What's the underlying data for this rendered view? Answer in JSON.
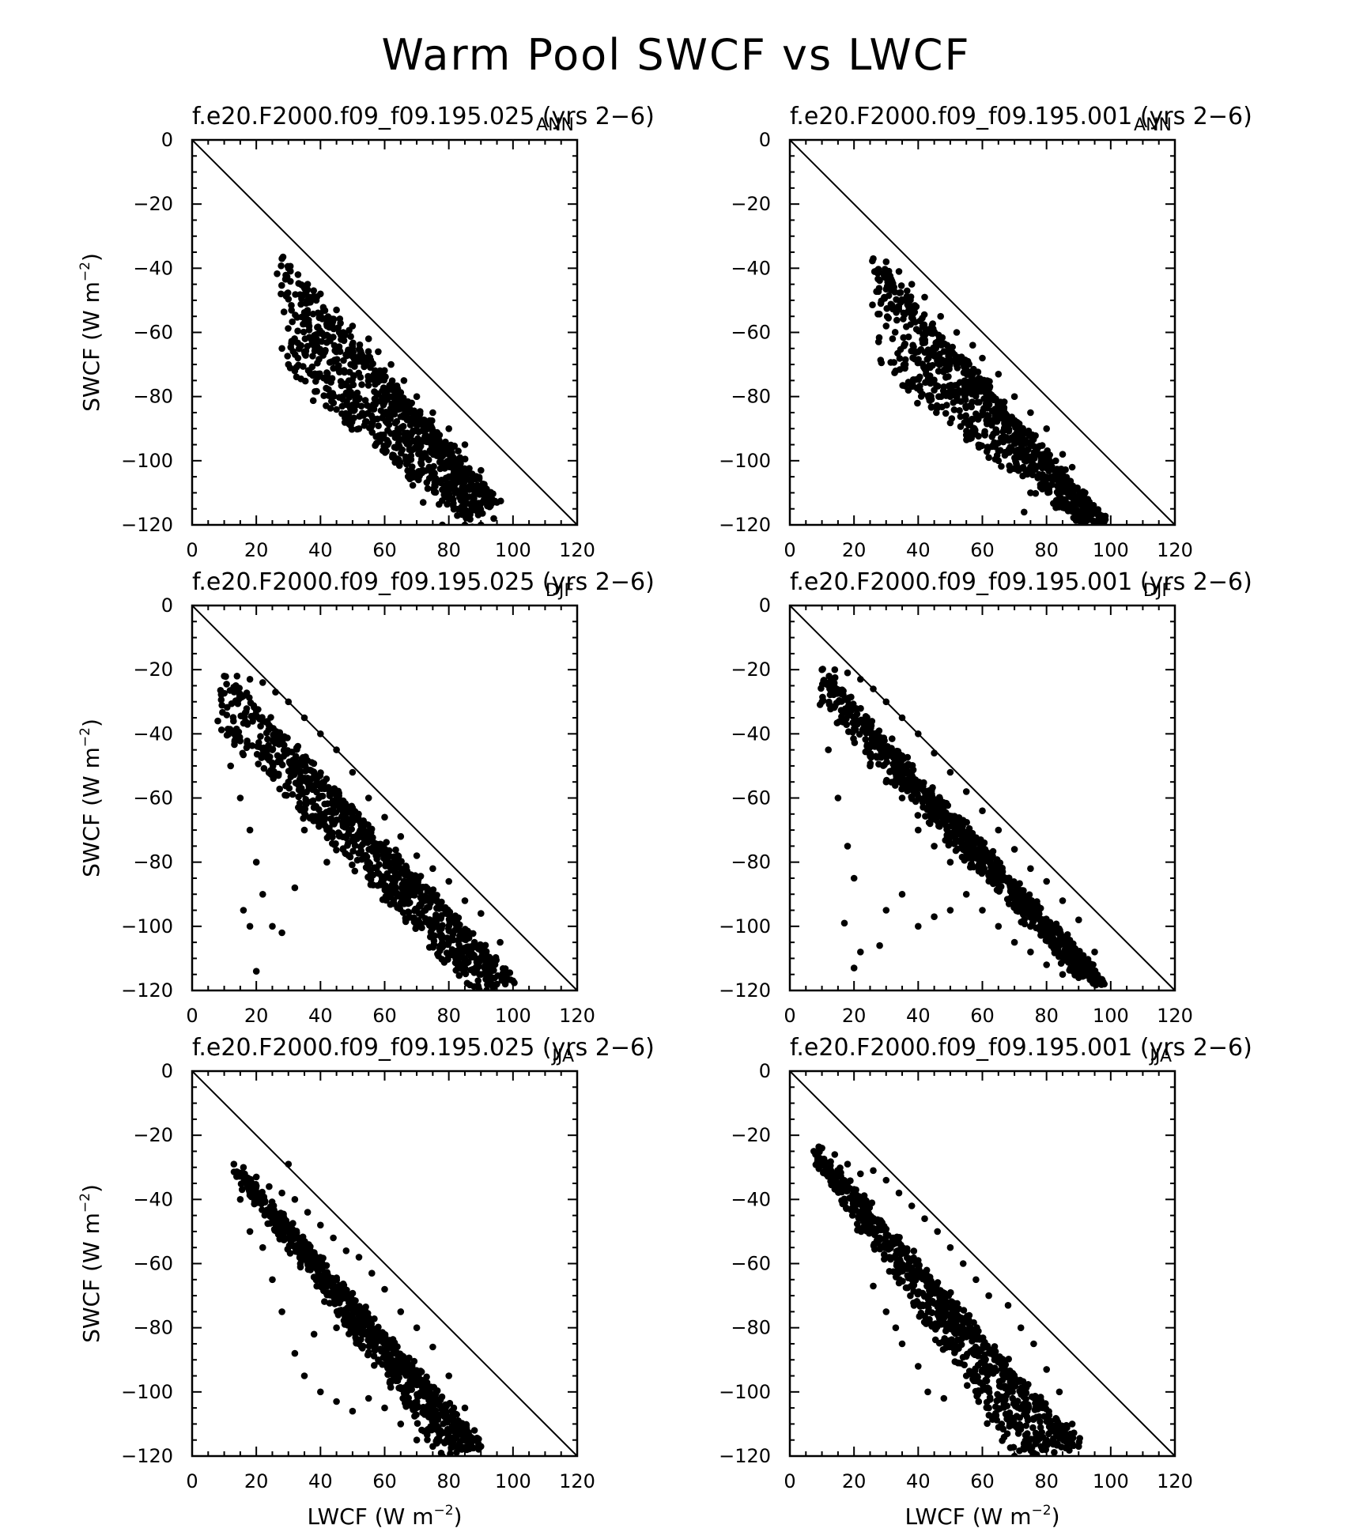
{
  "figure": {
    "title": "Warm Pool SWCF vs LWCF",
    "x_axis_label_main": "LWCF (W m",
    "y_axis_label_main": "SWCF (W m",
    "axis_unit_exponent": "−2",
    "axis_label_close": ")"
  },
  "chart_data": [
    {
      "type": "scatter",
      "title": "f.e20.F2000.f09_f09.195.025 (yrs 2−6)",
      "season": "ANN",
      "xlabel": "",
      "ylabel": "SWCF (W m−2)",
      "xlim": [
        0,
        120
      ],
      "ylim": [
        -120,
        0
      ],
      "x_ticks": [
        "0",
        "20",
        "40",
        "60",
        "80",
        "100",
        "120"
      ],
      "y_ticks": [
        "0",
        "−20",
        "−40",
        "−60",
        "−80",
        "−100",
        "−120"
      ],
      "reference_line": "y = −x",
      "cloud": {
        "upper_start": [
          27,
          -37
        ],
        "upper_end": [
          95,
          -113
        ],
        "lower_start": [
          28,
          -72
        ],
        "lower_end": [
          86,
          -120
        ]
      },
      "points": [
        [
          28,
          -37
        ],
        [
          30,
          -40
        ],
        [
          33,
          -42
        ],
        [
          36,
          -45
        ],
        [
          40,
          -48
        ],
        [
          45,
          -53
        ],
        [
          50,
          -58
        ],
        [
          55,
          -62
        ],
        [
          58,
          -66
        ],
        [
          62,
          -70
        ],
        [
          66,
          -75
        ],
        [
          70,
          -80
        ],
        [
          75,
          -85
        ],
        [
          80,
          -90
        ],
        [
          85,
          -95
        ],
        [
          90,
          -103
        ],
        [
          95,
          -113
        ],
        [
          28,
          -65
        ],
        [
          30,
          -70
        ],
        [
          33,
          -68
        ],
        [
          35,
          -66
        ],
        [
          42,
          -75
        ],
        [
          47,
          -80
        ],
        [
          52,
          -90
        ],
        [
          60,
          -96
        ],
        [
          64,
          -92
        ],
        [
          72,
          -103
        ],
        [
          72,
          -113
        ],
        [
          80,
          -105
        ],
        [
          82,
          -110
        ],
        [
          85,
          -120
        ],
        [
          78,
          -120
        ],
        [
          94,
          -118
        ],
        [
          90,
          -120
        ],
        [
          32,
          -72
        ]
      ]
    },
    {
      "type": "scatter",
      "title": "f.e20.F2000.f09_f09.195.001 (yrs 2−6)",
      "season": "ANN",
      "xlabel": "",
      "ylabel": "",
      "xlim": [
        0,
        120
      ],
      "ylim": [
        -120,
        0
      ],
      "x_ticks": [
        "0",
        "20",
        "40",
        "60",
        "80",
        "100",
        "120"
      ],
      "y_ticks": [
        "0",
        "−20",
        "−40",
        "−60",
        "−80",
        "−100",
        "−120"
      ],
      "reference_line": "y = −x",
      "cloud": {
        "upper_start": [
          26,
          -37
        ],
        "upper_end": [
          98,
          -119
        ],
        "lower_start": [
          28,
          -72
        ],
        "lower_end": [
          92,
          -120
        ]
      },
      "points": [
        [
          26,
          -37
        ],
        [
          30,
          -38
        ],
        [
          34,
          -41
        ],
        [
          38,
          -45
        ],
        [
          42,
          -49
        ],
        [
          47,
          -55
        ],
        [
          52,
          -60
        ],
        [
          57,
          -64
        ],
        [
          60,
          -68
        ],
        [
          65,
          -73
        ],
        [
          70,
          -80
        ],
        [
          75,
          -85
        ],
        [
          80,
          -90
        ],
        [
          85,
          -98
        ],
        [
          88,
          -102
        ],
        [
          92,
          -110
        ],
        [
          98,
          -119
        ],
        [
          30,
          -58
        ],
        [
          32,
          -62
        ],
        [
          33,
          -72
        ],
        [
          36,
          -70
        ],
        [
          40,
          -66
        ],
        [
          45,
          -78
        ],
        [
          50,
          -80
        ],
        [
          55,
          -92
        ],
        [
          62,
          -99
        ],
        [
          65,
          -100
        ],
        [
          73,
          -116
        ],
        [
          75,
          -110
        ],
        [
          80,
          -108
        ],
        [
          86,
          -113
        ],
        [
          92,
          -120
        ],
        [
          95,
          -120
        ]
      ]
    },
    {
      "type": "scatter",
      "title": "f.e20.F2000.f09_f09.195.025 (yrs 2−6)",
      "season": "DJF",
      "xlabel": "",
      "ylabel": "SWCF (W m−2)",
      "xlim": [
        0,
        120
      ],
      "ylim": [
        -120,
        0
      ],
      "x_ticks": [
        "0",
        "20",
        "40",
        "60",
        "80",
        "100",
        "120"
      ],
      "y_ticks": [
        "0",
        "−20",
        "−40",
        "−60",
        "−80",
        "−100",
        "−120"
      ],
      "reference_line": "y = −x",
      "cloud": {
        "upper_start": [
          10,
          -22
        ],
        "upper_end": [
          100,
          -117
        ],
        "lower_start": [
          8,
          -38
        ],
        "lower_end": [
          88,
          -120
        ]
      },
      "points": [
        [
          8,
          -36
        ],
        [
          10,
          -22
        ],
        [
          14,
          -22
        ],
        [
          18,
          -23
        ],
        [
          22,
          -24
        ],
        [
          26,
          -27
        ],
        [
          30,
          -30
        ],
        [
          35,
          -35
        ],
        [
          40,
          -40
        ],
        [
          45,
          -45
        ],
        [
          50,
          -52
        ],
        [
          55,
          -60
        ],
        [
          60,
          -66
        ],
        [
          65,
          -72
        ],
        [
          70,
          -78
        ],
        [
          75,
          -82
        ],
        [
          80,
          -86
        ],
        [
          85,
          -92
        ],
        [
          90,
          -96
        ],
        [
          96,
          -105
        ],
        [
          100,
          -117
        ],
        [
          12,
          -50
        ],
        [
          15,
          -60
        ],
        [
          18,
          -70
        ],
        [
          20,
          -80
        ],
        [
          22,
          -90
        ],
        [
          18,
          -100
        ],
        [
          20,
          -114
        ],
        [
          16,
          -95
        ],
        [
          25,
          -100
        ],
        [
          28,
          -102
        ],
        [
          32,
          -88
        ],
        [
          42,
          -80
        ],
        [
          55,
          -80
        ],
        [
          60,
          -85
        ],
        [
          65,
          -90
        ],
        [
          70,
          -95
        ],
        [
          75,
          -100
        ],
        [
          80,
          -105
        ],
        [
          85,
          -110
        ],
        [
          90,
          -115
        ],
        [
          95,
          -118
        ],
        [
          35,
          -70
        ],
        [
          40,
          -65
        ],
        [
          45,
          -60
        ],
        [
          30,
          -55
        ],
        [
          25,
          -45
        ]
      ]
    },
    {
      "type": "scatter",
      "title": "f.e20.F2000.f09_f09.195.001 (yrs 2−6)",
      "season": "DJF",
      "xlabel": "",
      "ylabel": "",
      "xlim": [
        0,
        120
      ],
      "ylim": [
        -120,
        0
      ],
      "x_ticks": [
        "0",
        "20",
        "40",
        "60",
        "80",
        "100",
        "120"
      ],
      "y_ticks": [
        "0",
        "−20",
        "−40",
        "−60",
        "−80",
        "−100",
        "−120"
      ],
      "reference_line": "y = −x",
      "cloud": {
        "upper_start": [
          10,
          -20
        ],
        "upper_end": [
          98,
          -118
        ],
        "lower_start": [
          9,
          -30
        ],
        "lower_end": [
          90,
          -116
        ]
      },
      "points": [
        [
          10,
          -20
        ],
        [
          14,
          -20
        ],
        [
          18,
          -21
        ],
        [
          22,
          -23
        ],
        [
          26,
          -26
        ],
        [
          30,
          -30
        ],
        [
          35,
          -35
        ],
        [
          40,
          -40
        ],
        [
          45,
          -46
        ],
        [
          50,
          -52
        ],
        [
          55,
          -58
        ],
        [
          60,
          -64
        ],
        [
          65,
          -70
        ],
        [
          70,
          -76
        ],
        [
          75,
          -82
        ],
        [
          80,
          -86
        ],
        [
          85,
          -92
        ],
        [
          90,
          -98
        ],
        [
          95,
          -108
        ],
        [
          98,
          -118
        ],
        [
          10,
          -30
        ],
        [
          12,
          -45
        ],
        [
          15,
          -60
        ],
        [
          18,
          -75
        ],
        [
          20,
          -85
        ],
        [
          17,
          -99
        ],
        [
          20,
          -113
        ],
        [
          22,
          -108
        ],
        [
          28,
          -106
        ],
        [
          30,
          -95
        ],
        [
          35,
          -90
        ],
        [
          40,
          -100
        ],
        [
          45,
          -97
        ],
        [
          50,
          -95
        ],
        [
          55,
          -90
        ],
        [
          60,
          -95
        ],
        [
          65,
          -100
        ],
        [
          70,
          -105
        ],
        [
          75,
          -108
        ],
        [
          80,
          -112
        ],
        [
          85,
          -115
        ],
        [
          90,
          -116
        ],
        [
          25,
          -50
        ],
        [
          30,
          -55
        ],
        [
          35,
          -60
        ],
        [
          40,
          -70
        ],
        [
          45,
          -75
        ],
        [
          50,
          -80
        ]
      ]
    },
    {
      "type": "scatter",
      "title": "f.e20.F2000.f09_f09.195.025 (yrs 2−6)",
      "season": "JJA",
      "xlabel": "LWCF (W m−2)",
      "ylabel": "SWCF (W m−2)",
      "xlim": [
        0,
        120
      ],
      "ylim": [
        -120,
        0
      ],
      "x_ticks": [
        "0",
        "20",
        "40",
        "60",
        "80",
        "100",
        "120"
      ],
      "y_ticks": [
        "0",
        "−20",
        "−40",
        "−60",
        "−80",
        "−100",
        "−120"
      ],
      "reference_line": "y = −x",
      "cloud": {
        "upper_start": [
          13,
          -29
        ],
        "upper_end": [
          90,
          -117
        ],
        "lower_start": [
          13,
          -32
        ],
        "lower_end": [
          78,
          -120
        ]
      },
      "points": [
        [
          13,
          -29
        ],
        [
          16,
          -30
        ],
        [
          20,
          -33
        ],
        [
          24,
          -36
        ],
        [
          28,
          -38
        ],
        [
          32,
          -40
        ],
        [
          36,
          -44
        ],
        [
          40,
          -48
        ],
        [
          44,
          -52
        ],
        [
          48,
          -56
        ],
        [
          52,
          -58
        ],
        [
          56,
          -63
        ],
        [
          60,
          -68
        ],
        [
          65,
          -75
        ],
        [
          70,
          -80
        ],
        [
          75,
          -86
        ],
        [
          80,
          -95
        ],
        [
          85,
          -105
        ],
        [
          88,
          -112
        ],
        [
          90,
          -117
        ],
        [
          15,
          -40
        ],
        [
          18,
          -50
        ],
        [
          22,
          -55
        ],
        [
          25,
          -65
        ],
        [
          28,
          -75
        ],
        [
          32,
          -88
        ],
        [
          35,
          -95
        ],
        [
          40,
          -100
        ],
        [
          45,
          -103
        ],
        [
          50,
          -106
        ],
        [
          55,
          -102
        ],
        [
          60,
          -105
        ],
        [
          65,
          -110
        ],
        [
          70,
          -115
        ],
        [
          75,
          -117
        ],
        [
          78,
          -120
        ],
        [
          30,
          -29
        ],
        [
          38,
          -82
        ],
        [
          45,
          -80
        ],
        [
          52,
          -85
        ],
        [
          58,
          -90
        ]
      ]
    },
    {
      "type": "scatter",
      "title": "f.e20.F2000.f09_f09.195.001 (yrs 2−6)",
      "season": "JJA",
      "xlabel": "LWCF (W m−2)",
      "ylabel": "",
      "xlim": [
        0,
        120
      ],
      "ylim": [
        -120,
        0
      ],
      "x_ticks": [
        "0",
        "20",
        "40",
        "60",
        "80",
        "100",
        "120"
      ],
      "y_ticks": [
        "0",
        "−20",
        "−40",
        "−60",
        "−80",
        "−100",
        "−120"
      ],
      "reference_line": "y = −x",
      "cloud": {
        "upper_start": [
          8,
          -24
        ],
        "upper_end": [
          90,
          -117
        ],
        "lower_start": [
          8,
          -28
        ],
        "lower_end": [
          70,
          -120
        ]
      },
      "points": [
        [
          8,
          -26
        ],
        [
          10,
          -24
        ],
        [
          14,
          -26
        ],
        [
          18,
          -29
        ],
        [
          22,
          -32
        ],
        [
          26,
          -31
        ],
        [
          30,
          -34
        ],
        [
          34,
          -38
        ],
        [
          38,
          -42
        ],
        [
          42,
          -46
        ],
        [
          46,
          -50
        ],
        [
          50,
          -55
        ],
        [
          54,
          -60
        ],
        [
          58,
          -65
        ],
        [
          62,
          -70
        ],
        [
          68,
          -73
        ],
        [
          72,
          -80
        ],
        [
          76,
          -85
        ],
        [
          80,
          -93
        ],
        [
          84,
          -100
        ],
        [
          88,
          -110
        ],
        [
          90,
          -117
        ],
        [
          15,
          -35
        ],
        [
          20,
          -42
        ],
        [
          25,
          -48
        ],
        [
          26,
          -67
        ],
        [
          30,
          -75
        ],
        [
          33,
          -80
        ],
        [
          35,
          -85
        ],
        [
          40,
          -92
        ],
        [
          43,
          -100
        ],
        [
          48,
          -102
        ],
        [
          55,
          -95
        ],
        [
          62,
          -105
        ],
        [
          66,
          -110
        ],
        [
          70,
          -120
        ],
        [
          74,
          -113
        ],
        [
          80,
          -115
        ],
        [
          85,
          -112
        ]
      ]
    }
  ]
}
